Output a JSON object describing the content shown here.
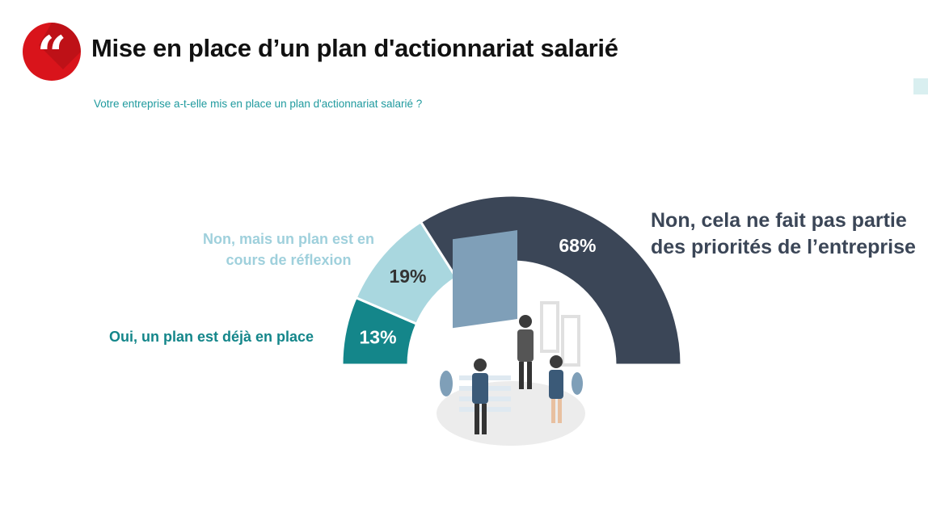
{
  "header": {
    "title": "Mise en place d’un plan d'actionnariat salarié",
    "quote_glyph": "“",
    "badge_icon": "quote-icon",
    "badge_color": "#d9141b"
  },
  "question": "Votre entreprise a-t-elle mis en place un plan d'actionnariat salarié ?",
  "illustration": {
    "icon": "business-meeting-illustration"
  },
  "chart_data": {
    "type": "pie",
    "variant": "half-donut",
    "unit": "%",
    "categories": [
      "Oui, un plan est déjà en place",
      "Non, mais un plan est en cours de réflexion",
      "Non, cela ne fait pas partie des priorités de l’entreprise"
    ],
    "values": [
      13,
      19,
      68
    ],
    "data_labels": [
      "13%",
      "19%",
      "68%"
    ],
    "colors": [
      "#14868a",
      "#a9d7df",
      "#3b4657"
    ],
    "label_colors": [
      "#ffffff",
      "#333333",
      "#ffffff"
    ],
    "legend": "labels-beside-segments"
  }
}
